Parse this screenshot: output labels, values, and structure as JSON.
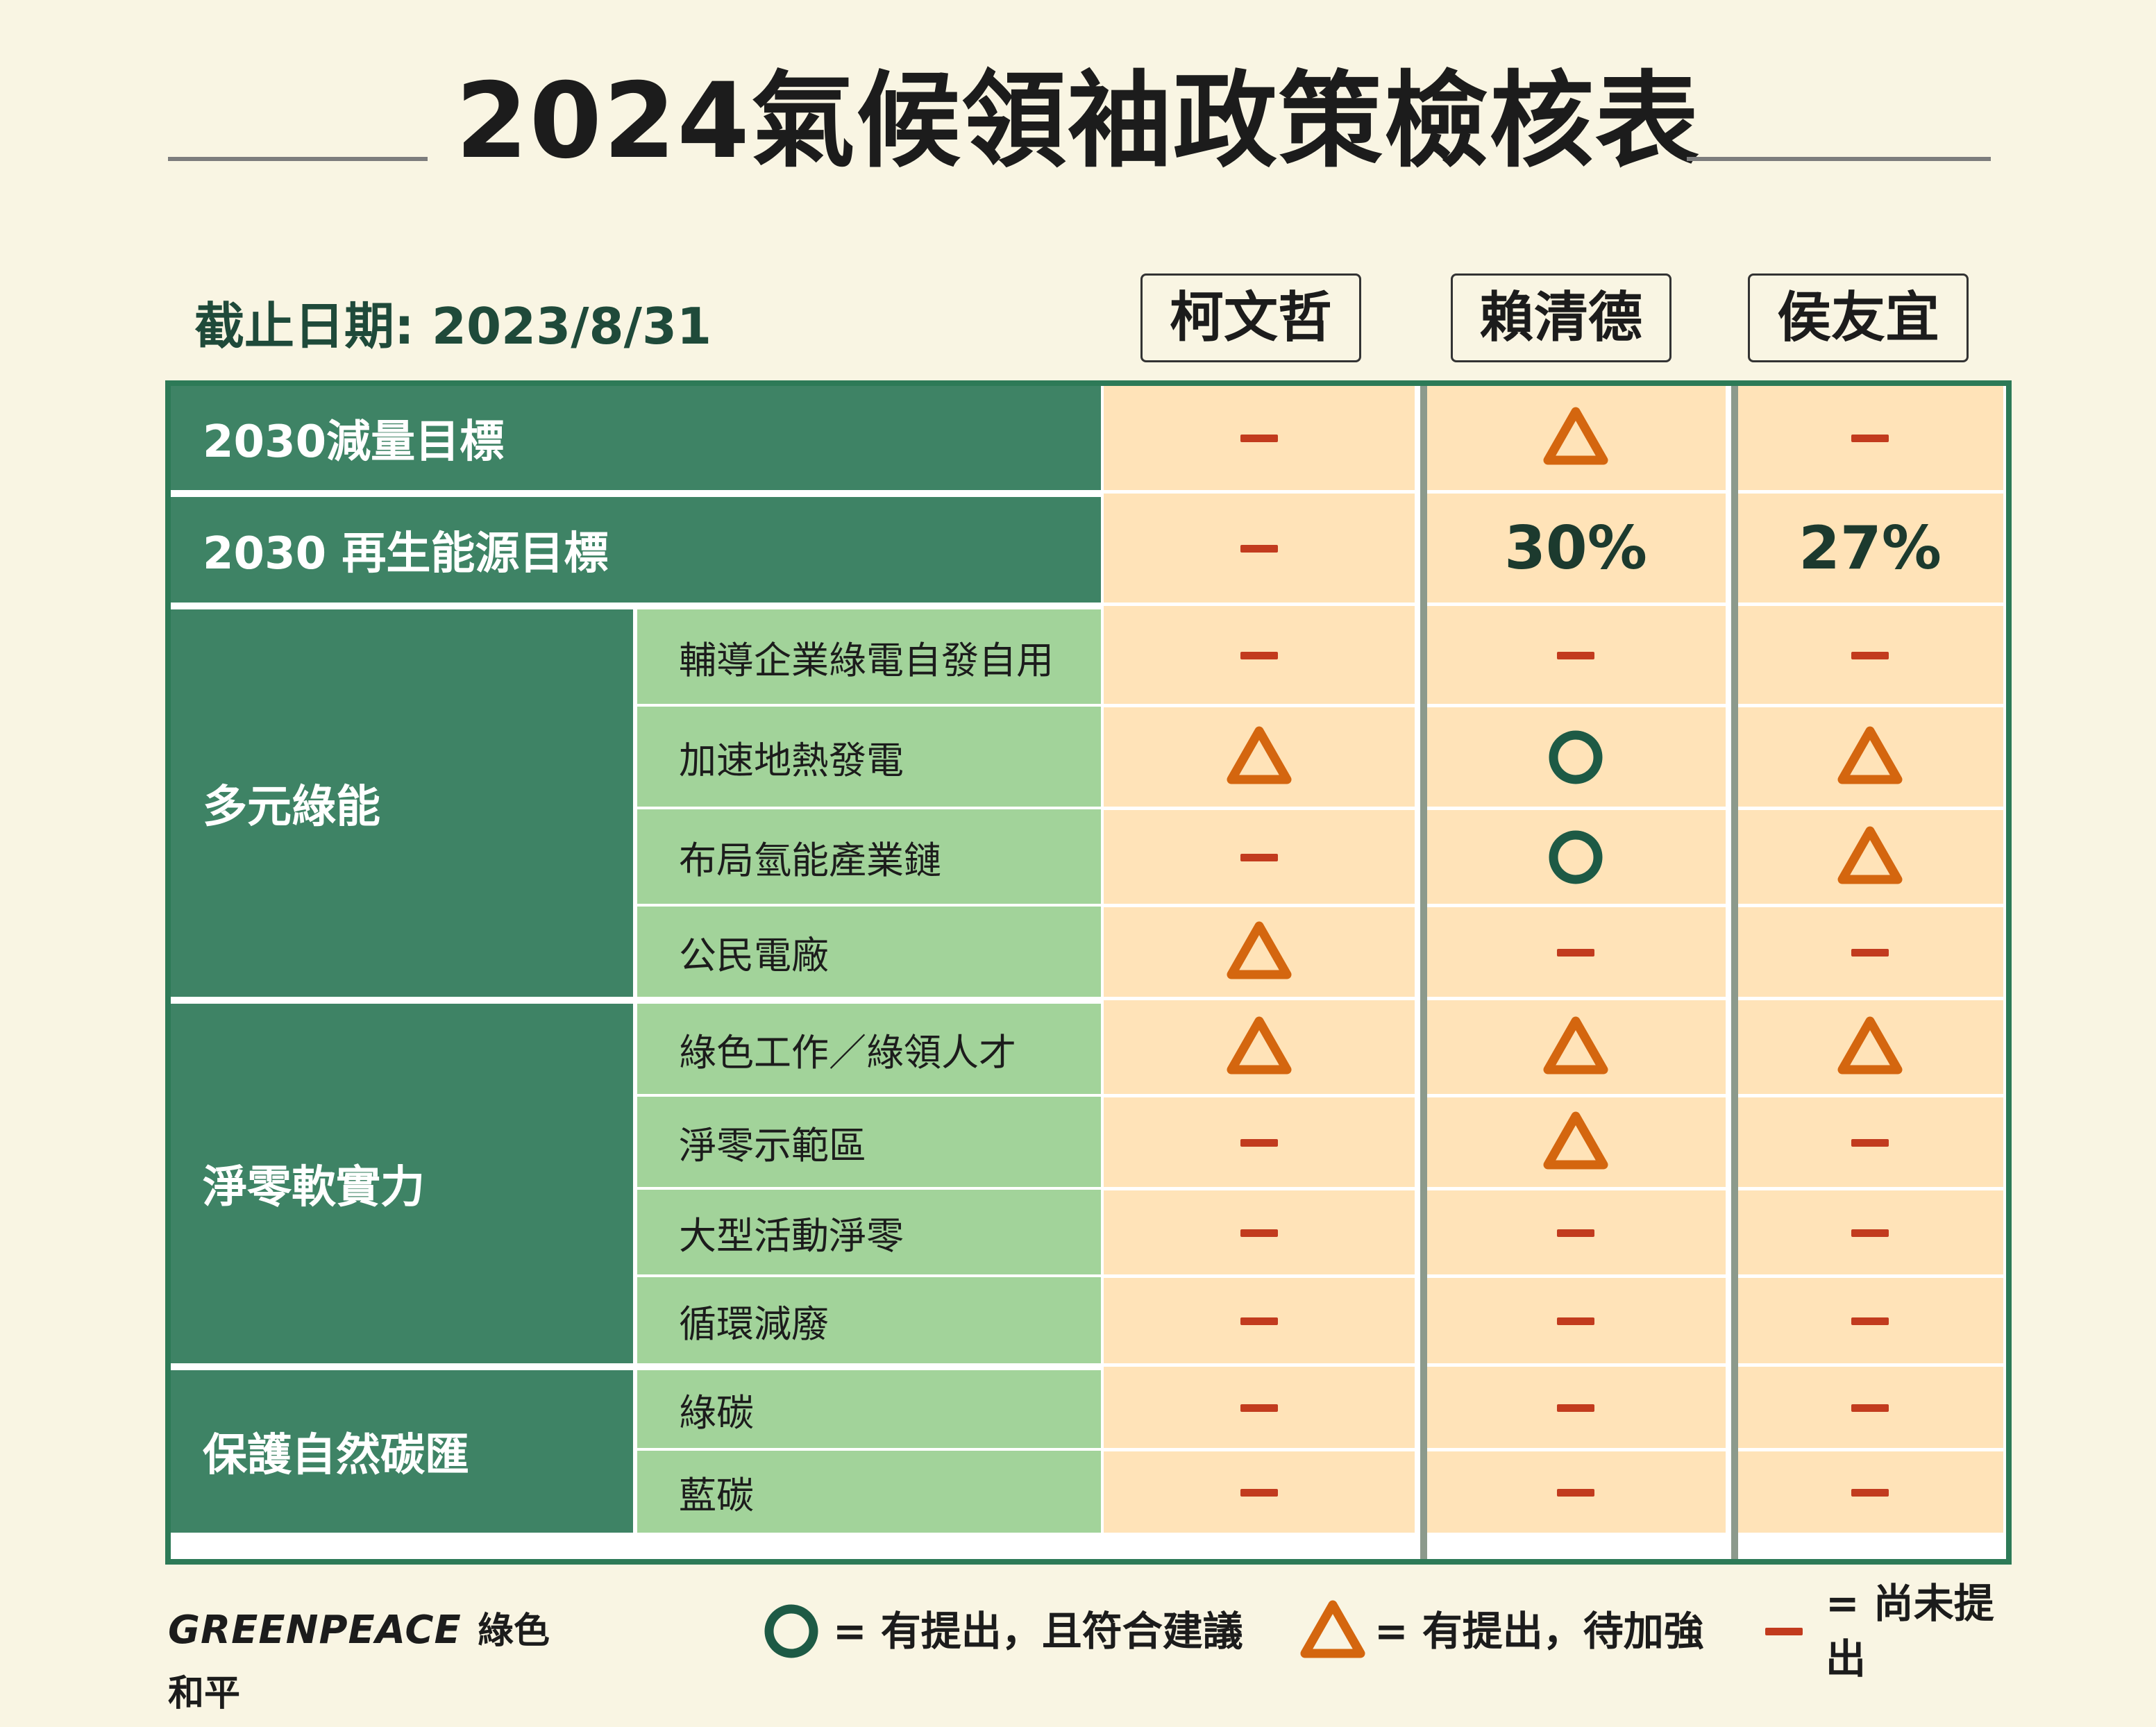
{
  "title": "2024氣候領袖政策檢核表",
  "cutoff_date": "截止日期: 2023/8/31",
  "candidates": [
    "柯文哲",
    "賴清德",
    "侯友宜"
  ],
  "colors": {
    "background": "#f9f5e3",
    "dark_green": "#3e8365",
    "light_green": "#a2d39a",
    "peach": "#ffe3b8",
    "circle": "#1d5a45",
    "triangle": "#d4660f",
    "dash": "#c23b1e"
  },
  "chart_data": {
    "type": "table",
    "columns": [
      "柯文哲",
      "賴清德",
      "侯友宜"
    ],
    "rows": [
      {
        "group": "2030減量目標",
        "item": "",
        "values": [
          "dash",
          "triangle",
          "dash"
        ]
      },
      {
        "group": "2030 再生能源目標",
        "item": "",
        "values": [
          "dash",
          "30%",
          "27%"
        ]
      },
      {
        "group": "多元綠能",
        "item": "輔導企業綠電自發自用",
        "values": [
          "dash",
          "dash",
          "dash"
        ]
      },
      {
        "group": "多元綠能",
        "item": "加速地熱發電",
        "values": [
          "triangle",
          "circle",
          "triangle"
        ]
      },
      {
        "group": "多元綠能",
        "item": "布局氫能產業鏈",
        "values": [
          "dash",
          "circle",
          "triangle"
        ]
      },
      {
        "group": "多元綠能",
        "item": "公民電廠",
        "values": [
          "triangle",
          "dash",
          "dash"
        ]
      },
      {
        "group": "淨零軟實力",
        "item": "綠色工作／綠領人才",
        "values": [
          "triangle",
          "triangle",
          "triangle"
        ]
      },
      {
        "group": "淨零軟實力",
        "item": "淨零示範區",
        "values": [
          "dash",
          "triangle",
          "dash"
        ]
      },
      {
        "group": "淨零軟實力",
        "item": "大型活動淨零",
        "values": [
          "dash",
          "dash",
          "dash"
        ]
      },
      {
        "group": "淨零軟實力",
        "item": "循環減廢",
        "values": [
          "dash",
          "dash",
          "dash"
        ]
      },
      {
        "group": "保護自然碳匯",
        "item": "綠碳",
        "values": [
          "dash",
          "dash",
          "dash"
        ]
      },
      {
        "group": "保護自然碳匯",
        "item": "藍碳",
        "values": [
          "dash",
          "dash",
          "dash"
        ]
      }
    ],
    "legend": [
      {
        "symbol": "circle",
        "text": "= 有提出，且符合建議"
      },
      {
        "symbol": "triangle",
        "text": "= 有提出，待加強"
      },
      {
        "symbol": "dash",
        "text": "= 尚未提出"
      }
    ]
  },
  "logo": {
    "latin": "GREENPEACE",
    "chinese": "綠色和平"
  }
}
